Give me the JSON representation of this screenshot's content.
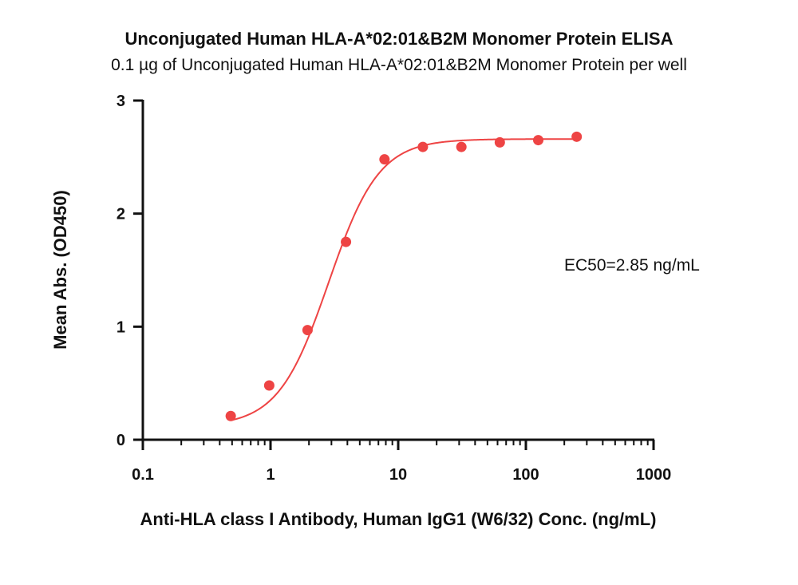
{
  "chart_data": {
    "type": "scatter",
    "title": "Unconjugated Human HLA-A*02:01&B2M Monomer Protein ELISA",
    "subtitle": "0.1 µg of Unconjugated Human HLA-A*02:01&B2M Monomer Protein per well",
    "xlabel": "Anti-HLA class I Antibody, Human IgG1 (W6/32) Conc. (ng/mL)",
    "ylabel": "Mean Abs. (OD450)",
    "xscale": "log",
    "xlim": [
      0.1,
      1000
    ],
    "ylim": [
      0,
      3
    ],
    "x_ticks": [
      0.1,
      1,
      10,
      100,
      1000
    ],
    "x_tick_labels": [
      "0.1",
      "1",
      "10",
      "100",
      "1000"
    ],
    "y_ticks": [
      0,
      1,
      2,
      3
    ],
    "y_tick_labels": [
      "0",
      "1",
      "2",
      "3"
    ],
    "grid": false,
    "series": [
      {
        "color": "#ee4444",
        "x": [
          0.488,
          0.977,
          1.95,
          3.9,
          7.81,
          15.6,
          31.25,
          62.5,
          125,
          250
        ],
        "y": [
          0.21,
          0.48,
          0.97,
          1.75,
          2.48,
          2.59,
          2.59,
          2.63,
          2.65,
          2.68
        ]
      }
    ],
    "fit_curve": {
      "color": "#ee4444",
      "bottom": 0.12,
      "top": 2.66,
      "ec50": 2.85,
      "hill": 2.2,
      "x_range": [
        0.488,
        250
      ]
    },
    "annotations": [
      {
        "text": "EC50=2.85 ng/mL"
      }
    ]
  }
}
